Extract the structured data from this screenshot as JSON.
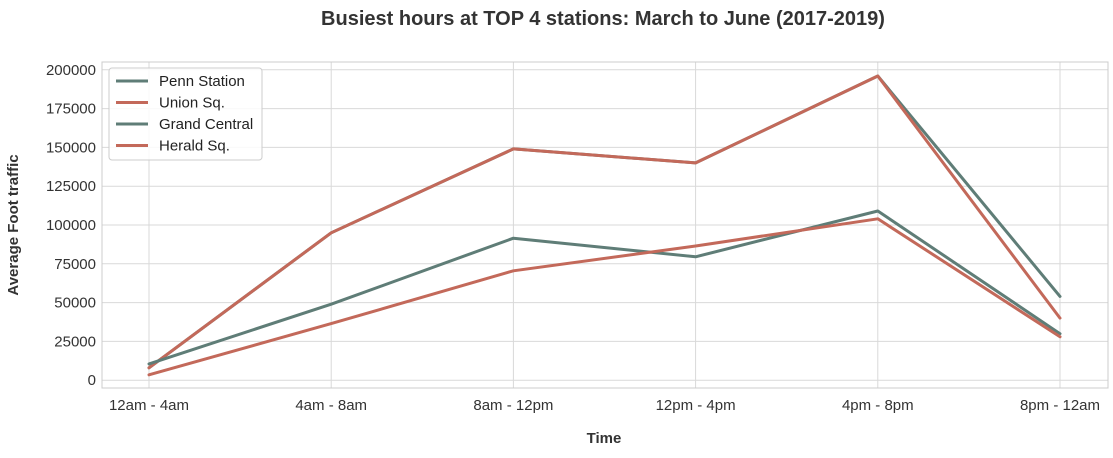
{
  "colors": {
    "slate": "#5f7d77",
    "terracotta": "#c3695a"
  },
  "chart_data": {
    "type": "line",
    "title": "Busiest hours at TOP 4 stations: March to June (2017-2019)",
    "xlabel": "Time",
    "ylabel": "Average Foot traffic",
    "categories": [
      "12am - 4am",
      "4am - 8am",
      "8am - 12pm",
      "12pm - 4pm",
      "4pm - 8pm",
      "8pm - 12am"
    ],
    "ylim": [
      -5000,
      205000
    ],
    "yticks": [
      0,
      25000,
      50000,
      75000,
      100000,
      125000,
      150000,
      175000,
      200000
    ],
    "ytick_labels": [
      "0",
      "25000",
      "50000",
      "75000",
      "100000",
      "125000",
      "150000",
      "175000",
      "200000"
    ],
    "grid": true,
    "legend_position": "top-left",
    "series": [
      {
        "name": "Penn Station",
        "color": "#5f7d77",
        "values": [
          8000,
          95000,
          149000,
          140000,
          196000,
          54000
        ]
      },
      {
        "name": "Union Sq.",
        "color": "#c3695a",
        "values": [
          8000,
          95000,
          149000,
          140000,
          196000,
          40000
        ]
      },
      {
        "name": "Grand Central",
        "color": "#5f7d77",
        "values": [
          10500,
          49000,
          91500,
          79500,
          109000,
          30000
        ]
      },
      {
        "name": "Herald Sq.",
        "color": "#c3695a",
        "values": [
          3500,
          36500,
          70500,
          86500,
          104000,
          28000
        ]
      }
    ]
  }
}
